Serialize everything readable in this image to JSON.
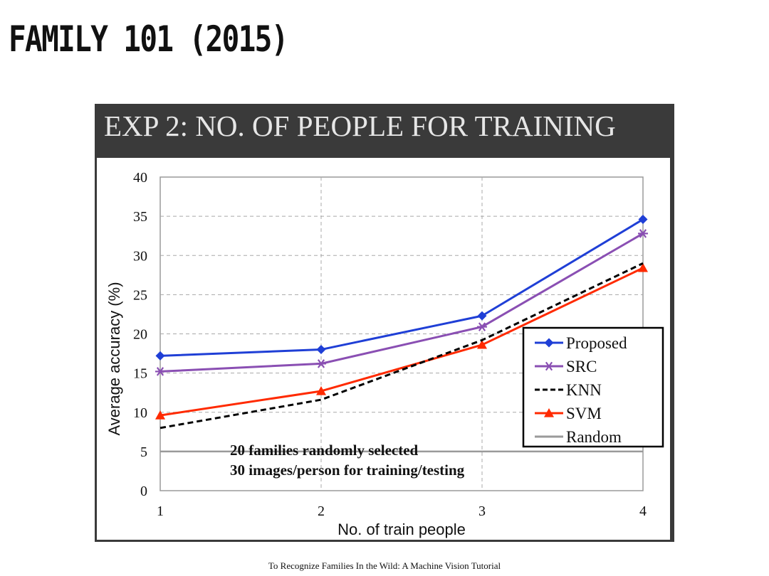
{
  "slide": {
    "title": "FAMILY 101 (2015)",
    "footer": "To Recognize Families In the Wild: A Machine Vision Tutorial"
  },
  "panel": {
    "title": "EXP 2: NO. OF PEOPLE FOR TRAINING"
  },
  "chart_data": {
    "type": "line",
    "x": [
      1,
      2,
      3,
      4
    ],
    "xlabel": "No. of train people",
    "ylabel": "Average accuracy (%)",
    "xlim": [
      1,
      4
    ],
    "ylim": [
      0,
      40
    ],
    "x_ticks": [
      "1",
      "2",
      "3",
      "4"
    ],
    "y_ticks": [
      "0",
      "5",
      "10",
      "15",
      "20",
      "25",
      "30",
      "35",
      "40"
    ],
    "grid": true,
    "legend_position": "right",
    "series": [
      {
        "name": "Proposed",
        "values": [
          17.2,
          18.0,
          22.3,
          34.6
        ],
        "color": "#1f3fd6",
        "marker": "diamond",
        "dash": "solid"
      },
      {
        "name": "SRC",
        "values": [
          15.2,
          16.2,
          20.9,
          32.8
        ],
        "color": "#8a4fb3",
        "marker": "asterisk",
        "dash": "solid"
      },
      {
        "name": "KNN",
        "values": [
          8.0,
          11.6,
          19.2,
          29.0
        ],
        "color": "#000000",
        "marker": "none",
        "dash": "dashed"
      },
      {
        "name": "SVM",
        "values": [
          9.6,
          12.7,
          18.6,
          28.4
        ],
        "color": "#ff2a00",
        "marker": "triangle",
        "dash": "solid"
      },
      {
        "name": "Random",
        "values": [
          5.0,
          5.0,
          5.0,
          5.0
        ],
        "color": "#9a9a9a",
        "marker": "none",
        "dash": "solid"
      }
    ],
    "annotations": [
      "20 families randomly selected",
      "30 images/person for training/testing"
    ]
  }
}
